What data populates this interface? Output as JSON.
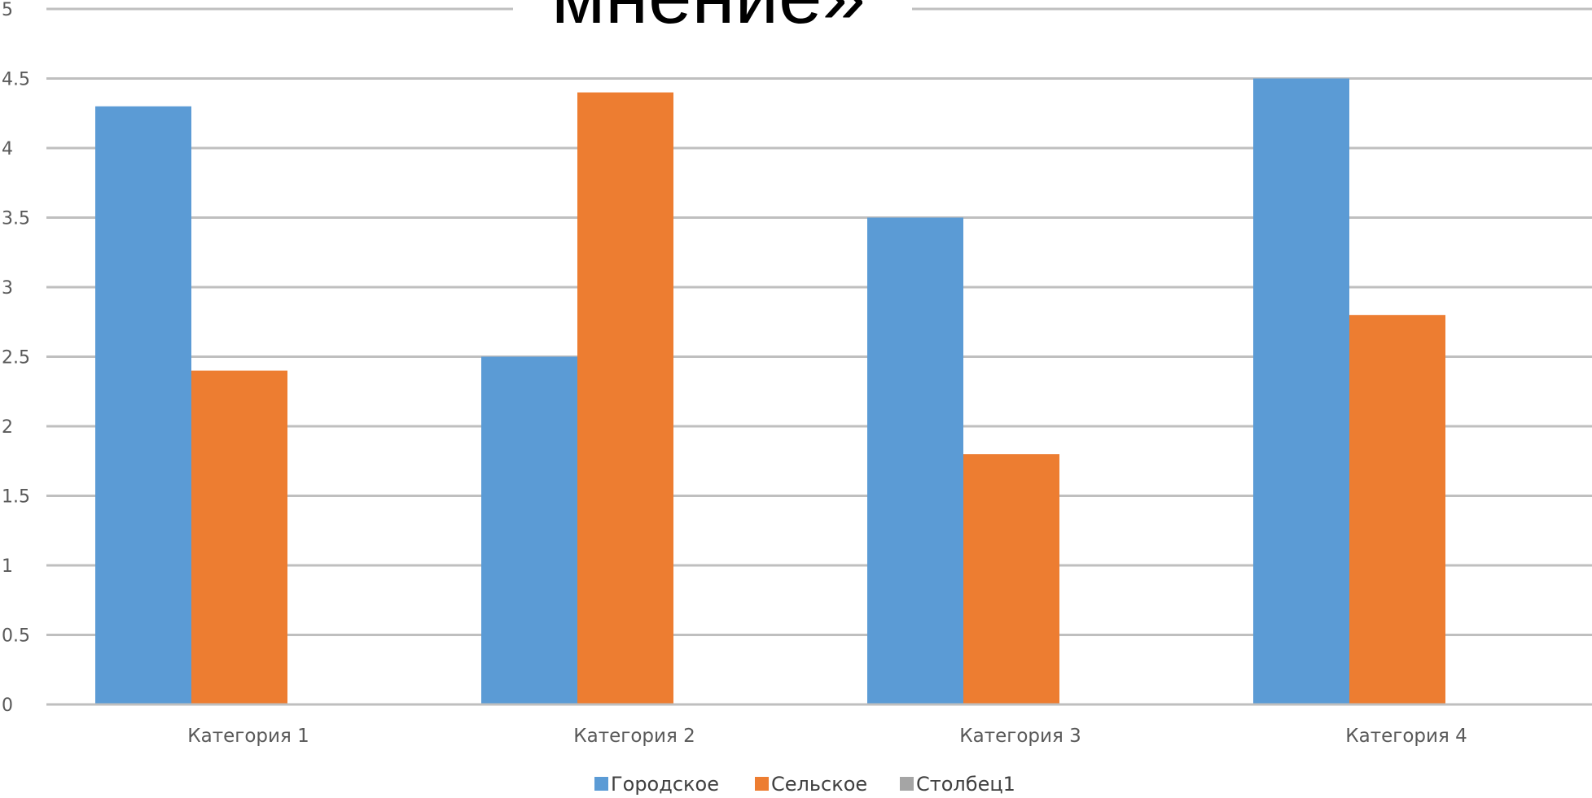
{
  "chart_data": {
    "type": "bar",
    "title": "мнение»",
    "xlabel": "",
    "ylabel": "",
    "categories": [
      "Категория 1",
      "Категория 2",
      "Категория 3",
      "Категория 4"
    ],
    "series": [
      {
        "name": "Городское",
        "values": [
          4.3,
          2.5,
          3.5,
          4.5
        ],
        "color": "#5b9bd5"
      },
      {
        "name": "Сельское",
        "values": [
          2.4,
          4.4,
          1.8,
          2.8
        ],
        "color": "#ed7d31"
      },
      {
        "name": "Столбец1",
        "values": [
          null,
          null,
          null,
          null
        ],
        "color": "#a5a5a5"
      }
    ],
    "ylim": [
      0,
      5
    ],
    "yticks": [
      "0",
      "0.5",
      "1",
      "1.5",
      "2",
      "2.5",
      "3",
      "3.5",
      "4",
      "4.5",
      "5"
    ],
    "grid": true,
    "legend": "bottom",
    "gridline_color": "#bfbfbf"
  }
}
